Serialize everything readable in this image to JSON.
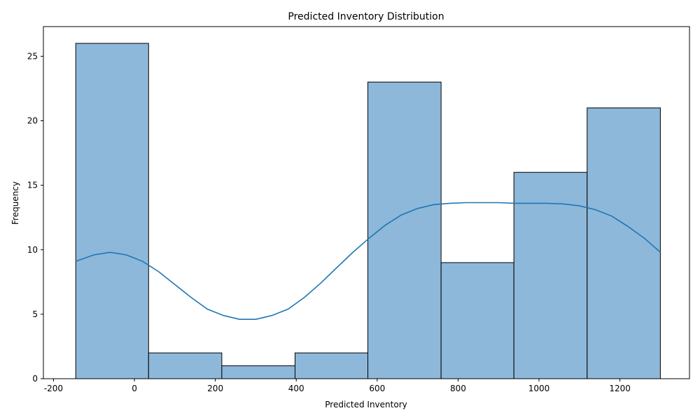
{
  "chart_data": {
    "type": "bar",
    "title": "Predicted Inventory Distribution",
    "xlabel": "Predicted Inventory",
    "ylabel": "Frequency",
    "xlim": [
      -225,
      1372
    ],
    "ylim": [
      0,
      27.3
    ],
    "xticks": [
      -200,
      0,
      200,
      400,
      600,
      800,
      1000,
      1200
    ],
    "yticks": [
      0,
      5,
      10,
      15,
      20,
      25
    ],
    "grid": false,
    "legend": "none",
    "bins": [
      {
        "x0": -145,
        "x1": 35,
        "count": 26
      },
      {
        "x0": 35,
        "x1": 216,
        "count": 2
      },
      {
        "x0": 216,
        "x1": 397,
        "count": 1
      },
      {
        "x0": 397,
        "x1": 577,
        "count": 2
      },
      {
        "x0": 577,
        "x1": 758,
        "count": 23
      },
      {
        "x0": 758,
        "x1": 938,
        "count": 9
      },
      {
        "x0": 938,
        "x1": 1119,
        "count": 16
      },
      {
        "x0": 1119,
        "x1": 1300,
        "count": 21
      }
    ],
    "kde": {
      "x": [
        -145,
        -100,
        -60,
        -20,
        20,
        60,
        100,
        140,
        180,
        220,
        260,
        300,
        340,
        380,
        420,
        460,
        500,
        540,
        580,
        620,
        660,
        700,
        740,
        780,
        820,
        860,
        900,
        940,
        980,
        1020,
        1060,
        1100,
        1140,
        1180,
        1220,
        1260,
        1300
      ],
      "y": [
        9.1,
        9.6,
        9.8,
        9.6,
        9.1,
        8.3,
        7.3,
        6.3,
        5.4,
        4.9,
        4.6,
        4.6,
        4.9,
        5.4,
        6.3,
        7.4,
        8.6,
        9.8,
        10.9,
        11.9,
        12.7,
        13.2,
        13.5,
        13.6,
        13.65,
        13.65,
        13.65,
        13.6,
        13.6,
        13.6,
        13.55,
        13.4,
        13.1,
        12.6,
        11.8,
        10.9,
        9.8
      ]
    },
    "colors": {
      "bar_fill": "#8db8da",
      "bar_edge": "#000000",
      "kde_line": "#1f77b4"
    }
  }
}
